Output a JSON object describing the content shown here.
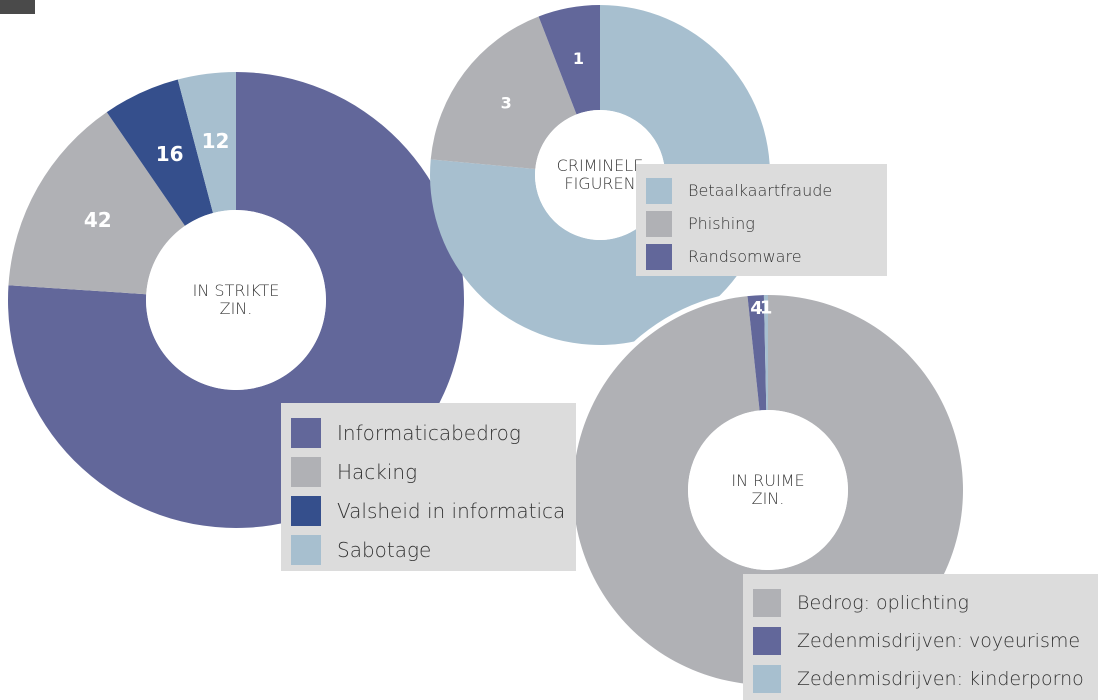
{
  "charts": [
    {
      "type": "pie",
      "center_label": "IN STRIKTE ZIN.",
      "categories": [
        "Informaticabedrog",
        "Hacking",
        "Valsheid in informatica",
        "Sabotage"
      ],
      "values": [
        222,
        42,
        16,
        12
      ],
      "colors": [
        "#62679a",
        "#b0b1b5",
        "#354f8c",
        "#a7bfcf"
      ]
    },
    {
      "type": "pie",
      "center_label": "CRIMINELE FIGUREN",
      "categories": [
        "Betaalkaartfraude",
        "Phishing",
        "Randsomware"
      ],
      "values": [
        13,
        3,
        1
      ],
      "colors": [
        "#a7bfcf",
        "#b0b1b5",
        "#62679a"
      ]
    },
    {
      "type": "pie",
      "center_label": "IN RUIME ZIN.",
      "categories": [
        "Bedrog: oplichting",
        "Zedenmisdrijven: voyeurisme",
        "Zedenmisdrijven: kinderporno"
      ],
      "values": [
        293,
        4,
        1
      ],
      "colors": [
        "#b0b1b5",
        "#62679a",
        "#a7bfcf"
      ]
    }
  ]
}
